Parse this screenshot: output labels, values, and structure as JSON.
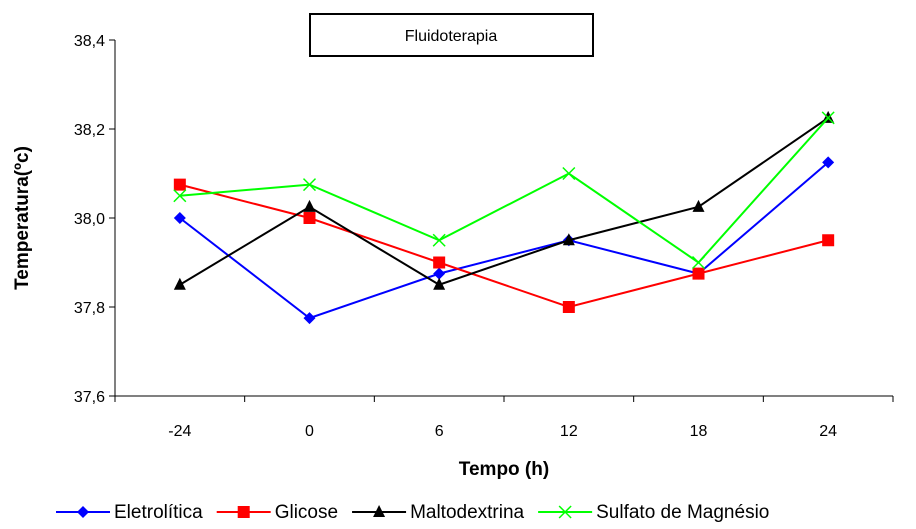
{
  "chart_data": {
    "type": "line",
    "title": "Fluidoterapia",
    "xlabel": "Tempo (h)",
    "ylabel": "Temperatura(ºc)",
    "categories": [
      "-24",
      "0",
      "6",
      "12",
      "18",
      "24"
    ],
    "ylim": [
      37.6,
      38.4
    ],
    "yticks": [
      "37,6",
      "37,8",
      "38,0",
      "38,2",
      "38,4"
    ],
    "yticks_values": [
      37.6,
      37.8,
      38.0,
      38.2,
      38.4
    ],
    "grid": false,
    "legend_position": "bottom",
    "series": [
      {
        "name": "Eletrolítica",
        "color": "#0000ff",
        "marker": "diamond",
        "values": [
          38.0,
          37.775,
          37.875,
          37.95,
          37.875,
          38.125
        ]
      },
      {
        "name": "Glicose",
        "color": "#ff0000",
        "marker": "square",
        "values": [
          38.075,
          38.0,
          37.9,
          37.8,
          37.875,
          37.95
        ]
      },
      {
        "name": "Maltodextrina",
        "color": "#000000",
        "marker": "triangle",
        "values": [
          37.85,
          38.025,
          37.85,
          37.95,
          38.025,
          38.225
        ]
      },
      {
        "name": "Sulfato de Magnésio",
        "color": "#00ff00",
        "marker": "cross",
        "values": [
          38.05,
          38.075,
          37.95,
          38.1,
          37.9,
          38.225
        ]
      }
    ]
  }
}
